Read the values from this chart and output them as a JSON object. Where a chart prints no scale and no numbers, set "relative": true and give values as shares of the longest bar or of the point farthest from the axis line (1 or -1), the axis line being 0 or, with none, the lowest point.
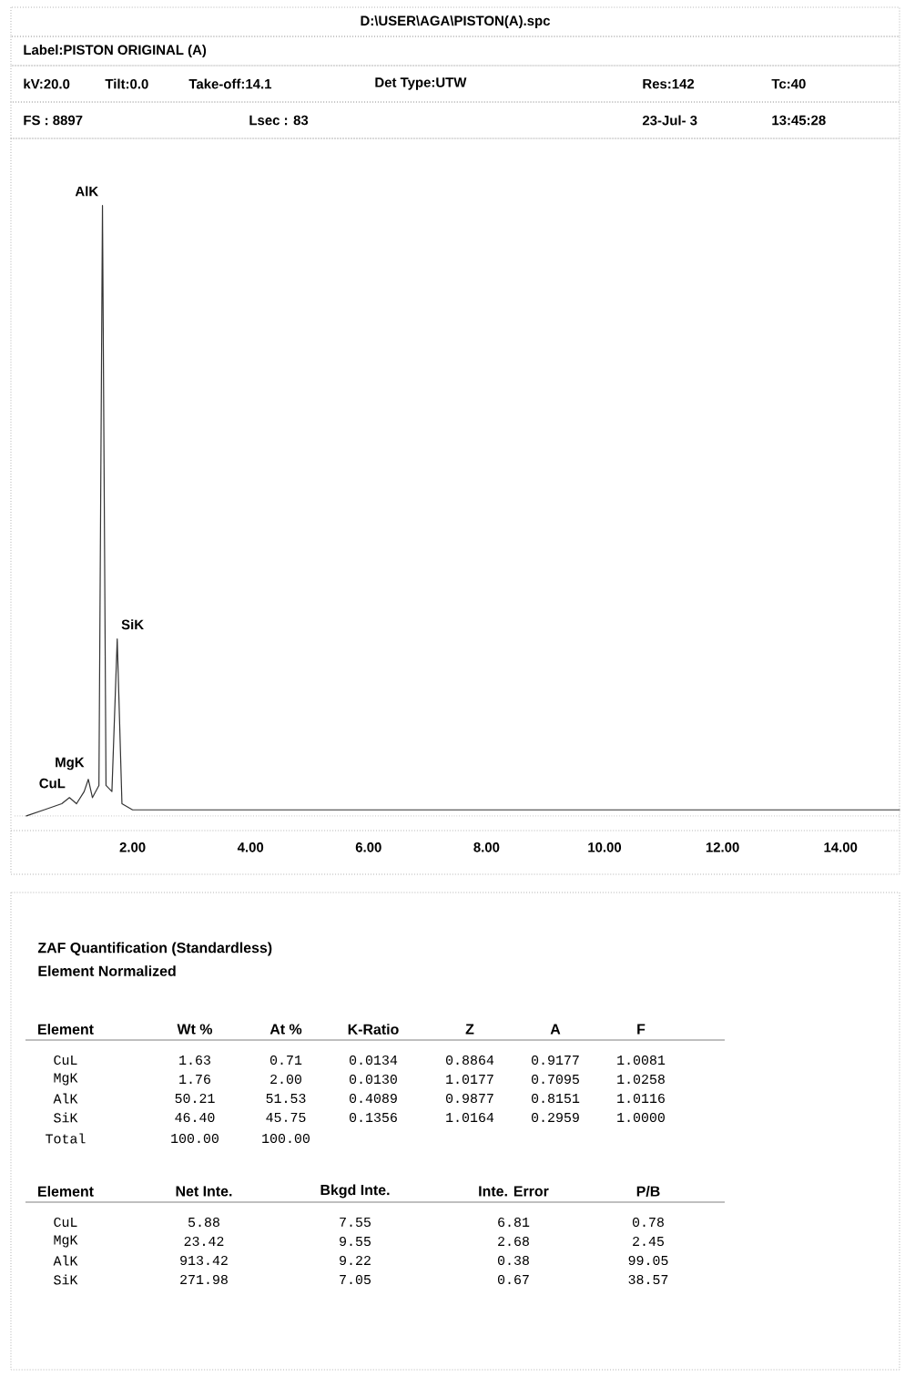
{
  "chart_data": {
    "type": "line",
    "title": "D:\\USER\\AGA\\PISTON(A).spc",
    "relative": true,
    "tick_labels": "x",
    "grid": false,
    "xlim": [
      0,
      15
    ],
    "xticks": [
      {
        "value": 2,
        "label": "2.00"
      },
      {
        "value": 4,
        "label": "4.00"
      },
      {
        "value": 6,
        "label": "6.00"
      },
      {
        "value": 8,
        "label": "8.00"
      },
      {
        "value": 10,
        "label": "10.00"
      },
      {
        "value": 12,
        "label": "12.00"
      },
      {
        "value": 14,
        "label": "14.00"
      }
    ],
    "series": [
      {
        "color": "#333333",
        "x": [
          0.2,
          0.5,
          0.8,
          0.93,
          1.05,
          1.18,
          1.25,
          1.32,
          1.43,
          1.49,
          1.55,
          1.65,
          1.74,
          1.82,
          2.0,
          3.0,
          5.0,
          7.0,
          9.0,
          11.0,
          13.0,
          15.0
        ],
        "values": [
          0.0,
          0.01,
          0.02,
          0.03,
          0.02,
          0.04,
          0.06,
          0.03,
          0.05,
          1.0,
          0.05,
          0.04,
          0.29,
          0.02,
          0.01,
          0.01,
          0.01,
          0.01,
          0.01,
          0.01,
          0.01,
          0.01
        ]
      }
    ],
    "annotations": [
      {
        "text": "AlK",
        "x": 1.49,
        "y": 1.0
      },
      {
        "text": "SiK",
        "x": 1.74,
        "y": 0.29
      },
      {
        "text": "MgK",
        "x": 1.25,
        "y": 0.06
      },
      {
        "text": "CuL",
        "x": 0.93,
        "y": 0.03
      },
      "Label:PISTON ORIGINAL (A)",
      "kV:20.0",
      "Tilt:0.0",
      "Take-off:14.1",
      "Det Type:UTW",
      "Res:142",
      "Tc:40",
      "FS : 8897",
      "Lsec : 83",
      "23-Jul- 3",
      "13:45:28",
      "ZAF Quantification (Standardless)",
      "Element Normalized",
      "Element",
      "Wt %",
      "At %",
      "K-Ratio",
      "Z",
      "A",
      "F",
      "CuL",
      "1.63",
      "0.71",
      "0.0134",
      "0.8864",
      "0.9177",
      "1.0081",
      "MgK",
      "1.76",
      "2.00",
      "0.0130",
      "1.0177",
      "0.7095",
      "1.0258",
      "AlK",
      "50.21",
      "51.53",
      "0.4089",
      "0.9877",
      "0.8151",
      "1.0116",
      "SiK",
      "46.40",
      "45.75",
      "0.1356",
      "1.0164",
      "0.2959",
      "1.0000",
      "Total",
      "100.00",
      "100.00",
      "Element",
      "Net Inte.",
      "Bkgd Inte.",
      "Inte. Error",
      "P/B",
      "CuL",
      "5.88",
      "7.55",
      "6.81",
      "0.78",
      "MgK",
      "23.42",
      "9.55",
      "2.68",
      "2.45",
      "AlK",
      "913.42",
      "9.22",
      "0.38",
      "99.05",
      "SiK",
      "271.98",
      "7.05",
      "0.67",
      "38.57"
    ]
  }
}
